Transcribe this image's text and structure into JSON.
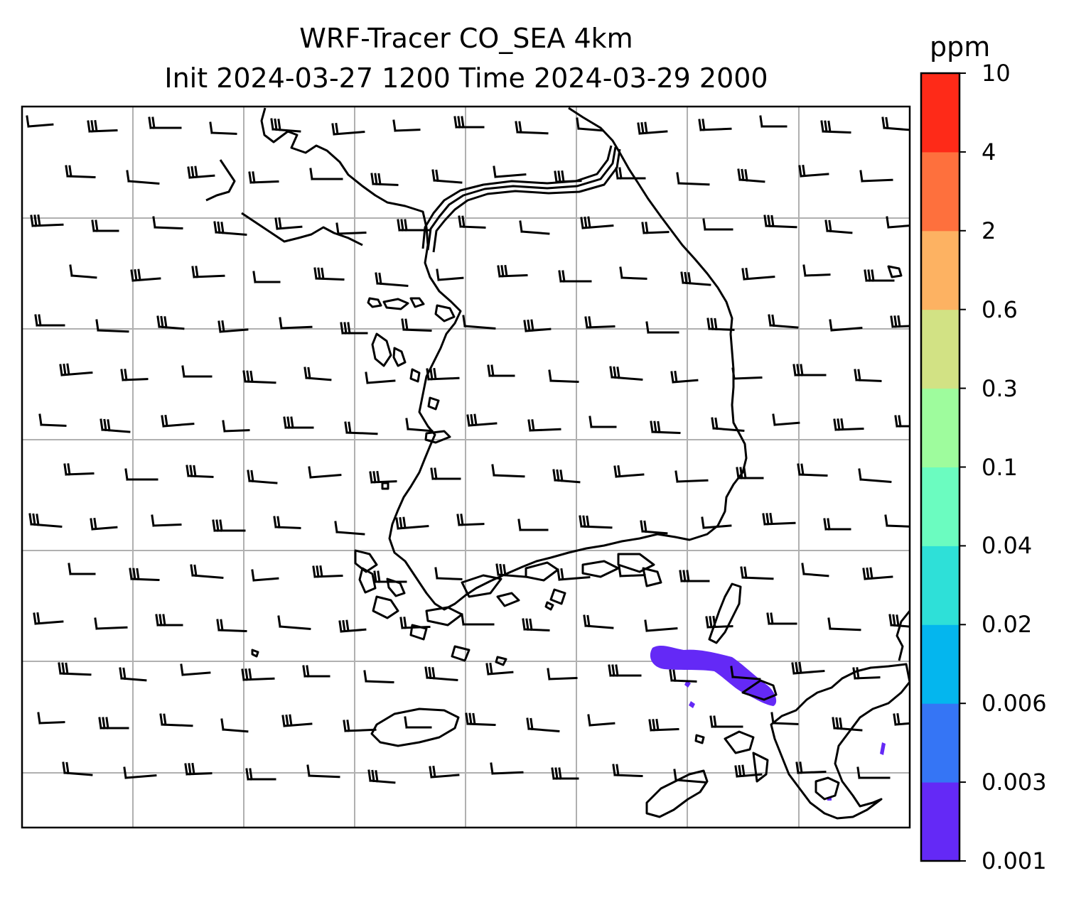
{
  "title": {
    "line1": "WRF-Tracer CO_SEA 4km",
    "line2": "Init 2024-03-27 1200 Time 2024-03-29 2000"
  },
  "colorbar": {
    "unit": "ppm",
    "levels": [
      "0.001",
      "0.003",
      "0.006",
      "0.02",
      "0.04",
      "0.1",
      "0.3",
      "0.6",
      "2",
      "4",
      "10"
    ],
    "colors": [
      "#6429f6",
      "#3575f5",
      "#04b6ee",
      "#2ee0d8",
      "#6bfcc0",
      "#9efc9d",
      "#d2e284",
      "#fdb262",
      "#fe703d",
      "#fe2a18"
    ]
  },
  "map": {
    "grid_color": "#b0b0b0",
    "coastline_color": "#000000",
    "tracer_color": "#6429f6",
    "wind_barbs": "uniform westerly wind barbs across domain"
  }
}
